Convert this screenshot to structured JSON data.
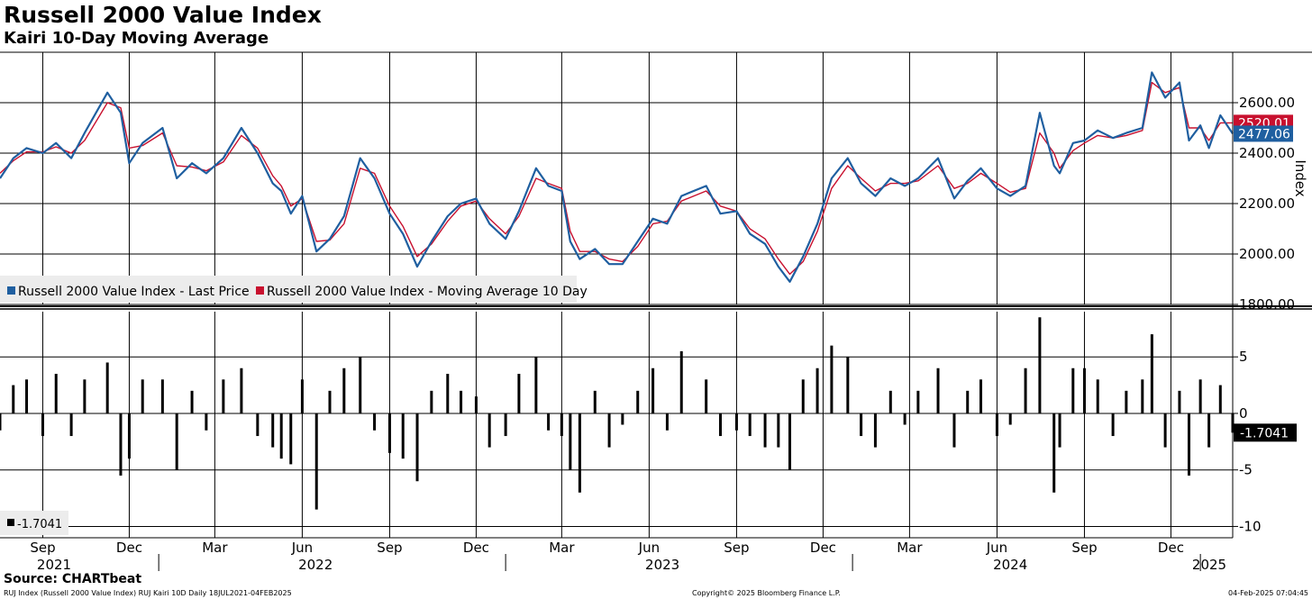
{
  "header": {
    "title": "Russell 2000 Value Index",
    "subtitle": "Kairi 10-Day Moving Average"
  },
  "footer": {
    "source": "Source: CHARTbeat",
    "left": "RUJ Index (Russell 2000 Value Index) RUJ Kairi 10D  Daily 18JUL2021-04FEB2025",
    "middle": "Copyright© 2025 Bloomberg Finance L.P.",
    "right": "04-Feb-2025 07:04:45"
  },
  "colors": {
    "price": "#1f5fa0",
    "moving_average": "#c8102e",
    "kairi": "#000000",
    "grid": "#000000"
  },
  "chart_data": [
    {
      "type": "line",
      "x_range": [
        "2021-07-18",
        "2025-02-04"
      ],
      "ylabel": "Index",
      "ylim": [
        1800,
        2800
      ],
      "y_ticks": [
        "1800.00",
        "2000.00",
        "2200.00",
        "2400.00",
        "2600.00"
      ],
      "grid": true,
      "legend_position": "bottom-left",
      "x_month_labels": [
        "Sep",
        "Dec",
        "Mar",
        "Jun",
        "Sep",
        "Dec",
        "Mar",
        "Jun",
        "Sep",
        "Dec",
        "Mar",
        "Jun",
        "Sep",
        "Dec"
      ],
      "x_month_dates": [
        "2021-09-01",
        "2021-12-01",
        "2022-03-01",
        "2022-06-01",
        "2022-09-01",
        "2022-12-01",
        "2023-03-01",
        "2023-06-01",
        "2023-09-01",
        "2023-12-01",
        "2024-03-01",
        "2024-06-01",
        "2024-09-01",
        "2024-12-01"
      ],
      "x_year_labels": [
        {
          "label": "2021",
          "date": "2021-07-18"
        },
        {
          "label": "2022",
          "date": "2022-06-15"
        },
        {
          "label": "2023",
          "date": "2023-06-15"
        },
        {
          "label": "2024",
          "date": "2024-06-15"
        },
        {
          "label": "2025",
          "date": "2025-01-18"
        }
      ],
      "year_separators": [
        "2022-01-01",
        "2023-01-01",
        "2024-01-01",
        "2025-01-01"
      ],
      "series": [
        {
          "name": "Russell 2000 Value Index - Last Price",
          "color": "#1f5fa0",
          "last_value": "2477.06",
          "x": [
            "2021-07-18",
            "2021-08-01",
            "2021-08-15",
            "2021-09-01",
            "2021-09-15",
            "2021-10-01",
            "2021-10-15",
            "2021-11-08",
            "2021-11-22",
            "2021-12-01",
            "2021-12-15",
            "2022-01-05",
            "2022-01-20",
            "2022-02-05",
            "2022-02-20",
            "2022-03-10",
            "2022-03-29",
            "2022-04-15",
            "2022-05-01",
            "2022-05-10",
            "2022-05-20",
            "2022-06-01",
            "2022-06-16",
            "2022-06-30",
            "2022-07-15",
            "2022-08-01",
            "2022-08-16",
            "2022-09-01",
            "2022-09-15",
            "2022-09-30",
            "2022-10-15",
            "2022-11-01",
            "2022-11-15",
            "2022-12-01",
            "2022-12-15",
            "2023-01-01",
            "2023-01-15",
            "2023-02-02",
            "2023-02-15",
            "2023-03-01",
            "2023-03-10",
            "2023-03-20",
            "2023-04-05",
            "2023-04-20",
            "2023-05-04",
            "2023-05-20",
            "2023-06-05",
            "2023-06-20",
            "2023-07-05",
            "2023-07-31",
            "2023-08-15",
            "2023-09-01",
            "2023-09-15",
            "2023-10-01",
            "2023-10-15",
            "2023-10-27",
            "2023-11-10",
            "2023-11-25",
            "2023-12-10",
            "2023-12-27",
            "2024-01-10",
            "2024-01-25",
            "2024-02-10",
            "2024-02-25",
            "2024-03-10",
            "2024-03-31",
            "2024-04-17",
            "2024-05-01",
            "2024-05-15",
            "2024-06-01",
            "2024-06-15",
            "2024-07-01",
            "2024-07-16",
            "2024-07-31",
            "2024-08-06",
            "2024-08-20",
            "2024-09-01",
            "2024-09-15",
            "2024-10-01",
            "2024-10-15",
            "2024-11-01",
            "2024-11-11",
            "2024-11-25",
            "2024-12-10",
            "2024-12-20",
            "2025-01-01",
            "2025-01-10",
            "2025-01-22",
            "2025-02-04"
          ],
          "values": [
            2300,
            2380,
            2420,
            2400,
            2440,
            2380,
            2480,
            2640,
            2560,
            2360,
            2440,
            2500,
            2300,
            2360,
            2320,
            2380,
            2500,
            2400,
            2280,
            2250,
            2160,
            2230,
            2010,
            2060,
            2150,
            2380,
            2300,
            2160,
            2080,
            1950,
            2050,
            2150,
            2200,
            2220,
            2120,
            2060,
            2170,
            2340,
            2270,
            2250,
            2050,
            1980,
            2020,
            1960,
            1960,
            2050,
            2140,
            2120,
            2230,
            2270,
            2160,
            2170,
            2080,
            2040,
            1950,
            1890,
            1990,
            2120,
            2300,
            2380,
            2280,
            2230,
            2300,
            2270,
            2300,
            2380,
            2220,
            2290,
            2340,
            2260,
            2230,
            2270,
            2560,
            2350,
            2320,
            2440,
            2450,
            2490,
            2460,
            2480,
            2500,
            2720,
            2620,
            2680,
            2450,
            2510,
            2420,
            2550,
            2477
          ]
        },
        {
          "name": "Russell 2000 Value Index - Moving Average 10 Day",
          "color": "#c8102e",
          "last_value": "2520.01",
          "x": [
            "2021-07-18",
            "2021-08-01",
            "2021-08-15",
            "2021-09-01",
            "2021-09-15",
            "2021-10-01",
            "2021-10-15",
            "2021-11-08",
            "2021-11-22",
            "2021-12-01",
            "2021-12-15",
            "2022-01-05",
            "2022-01-20",
            "2022-02-05",
            "2022-02-20",
            "2022-03-10",
            "2022-03-29",
            "2022-04-15",
            "2022-05-01",
            "2022-05-10",
            "2022-05-20",
            "2022-06-01",
            "2022-06-16",
            "2022-06-30",
            "2022-07-15",
            "2022-08-01",
            "2022-08-16",
            "2022-09-01",
            "2022-09-15",
            "2022-09-30",
            "2022-10-15",
            "2022-11-01",
            "2022-11-15",
            "2022-12-01",
            "2022-12-15",
            "2023-01-01",
            "2023-01-15",
            "2023-02-02",
            "2023-02-15",
            "2023-03-01",
            "2023-03-10",
            "2023-03-20",
            "2023-04-05",
            "2023-04-20",
            "2023-05-04",
            "2023-05-20",
            "2023-06-05",
            "2023-06-20",
            "2023-07-05",
            "2023-07-31",
            "2023-08-15",
            "2023-09-01",
            "2023-09-15",
            "2023-10-01",
            "2023-10-15",
            "2023-10-27",
            "2023-11-10",
            "2023-11-25",
            "2023-12-10",
            "2023-12-27",
            "2024-01-10",
            "2024-01-25",
            "2024-02-10",
            "2024-02-25",
            "2024-03-10",
            "2024-03-31",
            "2024-04-17",
            "2024-05-01",
            "2024-05-15",
            "2024-06-01",
            "2024-06-15",
            "2024-07-01",
            "2024-07-16",
            "2024-07-31",
            "2024-08-06",
            "2024-08-20",
            "2024-09-01",
            "2024-09-15",
            "2024-10-01",
            "2024-10-15",
            "2024-11-01",
            "2024-11-11",
            "2024-11-25",
            "2024-12-10",
            "2024-12-20",
            "2025-01-01",
            "2025-01-10",
            "2025-01-22",
            "2025-02-04"
          ],
          "values": [
            2320,
            2370,
            2405,
            2405,
            2425,
            2400,
            2450,
            2600,
            2580,
            2420,
            2430,
            2480,
            2350,
            2345,
            2330,
            2365,
            2470,
            2420,
            2310,
            2270,
            2190,
            2220,
            2050,
            2055,
            2120,
            2340,
            2320,
            2190,
            2110,
            1990,
            2040,
            2130,
            2190,
            2210,
            2140,
            2080,
            2150,
            2300,
            2280,
            2260,
            2090,
            2010,
            2010,
            1980,
            1970,
            2030,
            2120,
            2130,
            2210,
            2250,
            2190,
            2170,
            2100,
            2060,
            1980,
            1920,
            1970,
            2090,
            2260,
            2350,
            2300,
            2250,
            2280,
            2280,
            2290,
            2350,
            2260,
            2280,
            2320,
            2280,
            2245,
            2260,
            2480,
            2400,
            2340,
            2410,
            2440,
            2470,
            2460,
            2470,
            2490,
            2680,
            2640,
            2660,
            2500,
            2500,
            2450,
            2520,
            2520
          ]
        }
      ]
    },
    {
      "type": "bar",
      "ylim": [
        -11,
        9
      ],
      "y_ticks": [
        "-10",
        "-5",
        "0",
        "5"
      ],
      "grid": true,
      "legend_position": "bottom-left",
      "series": [
        {
          "name": "",
          "legend_value": "-1.7041",
          "color": "#000000",
          "last_value": "-1.7041",
          "x": [
            "2021-07-18",
            "2021-08-01",
            "2021-08-15",
            "2021-09-01",
            "2021-09-15",
            "2021-10-01",
            "2021-10-15",
            "2021-11-08",
            "2021-11-22",
            "2021-12-01",
            "2021-12-15",
            "2022-01-05",
            "2022-01-20",
            "2022-02-05",
            "2022-02-20",
            "2022-03-10",
            "2022-03-29",
            "2022-04-15",
            "2022-05-01",
            "2022-05-10",
            "2022-05-20",
            "2022-06-01",
            "2022-06-16",
            "2022-06-30",
            "2022-07-15",
            "2022-08-01",
            "2022-08-16",
            "2022-09-01",
            "2022-09-15",
            "2022-09-30",
            "2022-10-15",
            "2022-11-01",
            "2022-11-15",
            "2022-12-01",
            "2022-12-15",
            "2023-01-01",
            "2023-01-15",
            "2023-02-02",
            "2023-02-15",
            "2023-03-01",
            "2023-03-10",
            "2023-03-20",
            "2023-04-05",
            "2023-04-20",
            "2023-05-04",
            "2023-05-20",
            "2023-06-05",
            "2023-06-20",
            "2023-07-05",
            "2023-07-31",
            "2023-08-15",
            "2023-09-01",
            "2023-09-15",
            "2023-10-01",
            "2023-10-15",
            "2023-10-27",
            "2023-11-10",
            "2023-11-25",
            "2023-12-10",
            "2023-12-27",
            "2024-01-10",
            "2024-01-25",
            "2024-02-10",
            "2024-02-25",
            "2024-03-10",
            "2024-03-31",
            "2024-04-17",
            "2024-05-01",
            "2024-05-15",
            "2024-06-01",
            "2024-06-15",
            "2024-07-01",
            "2024-07-16",
            "2024-07-31",
            "2024-08-06",
            "2024-08-20",
            "2024-09-01",
            "2024-09-15",
            "2024-10-01",
            "2024-10-15",
            "2024-11-01",
            "2024-11-11",
            "2024-11-25",
            "2024-12-10",
            "2024-12-20",
            "2025-01-01",
            "2025-01-10",
            "2025-01-22",
            "2025-02-04"
          ],
          "values": [
            -1.5,
            2.5,
            3,
            -2,
            3.5,
            -2,
            3,
            4.5,
            -5.5,
            -4,
            3,
            3,
            -5,
            2,
            -1.5,
            3,
            4,
            -2,
            -3,
            -4,
            -4.5,
            3,
            -8.5,
            2,
            4,
            5,
            -1.5,
            -3.5,
            -4,
            -6,
            2,
            3.5,
            2,
            1.5,
            -3,
            -2,
            3.5,
            5,
            -1.5,
            -2,
            -5,
            -7,
            2,
            -3,
            -1,
            2,
            4,
            -1.5,
            5.5,
            3,
            -2,
            -1.5,
            -2,
            -3,
            -3,
            -5,
            3,
            4,
            6,
            5,
            -2,
            -3,
            2,
            -1,
            2,
            4,
            -3,
            2,
            3,
            -2,
            -1,
            4,
            8.5,
            -7,
            -3,
            4,
            4,
            3,
            -2,
            2,
            3,
            7,
            -3,
            2,
            -5.5,
            3,
            -3,
            2.5,
            -1.7041
          ]
        }
      ]
    }
  ]
}
